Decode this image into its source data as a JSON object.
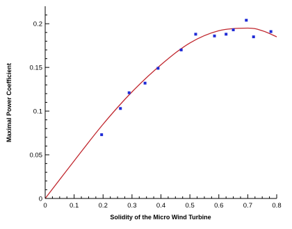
{
  "chart_data": {
    "type": "scatter",
    "title": "",
    "xlabel": "Solidity of the Micro Wind Turbine",
    "ylabel": "Maximal Power Coefficient",
    "xlim": [
      0,
      0.8
    ],
    "ylim": [
      0,
      0.22
    ],
    "x_ticks": [
      0,
      0.1,
      0.2,
      0.3,
      0.4,
      0.5,
      0.6,
      0.7,
      0.8
    ],
    "x_tick_labels": [
      "0",
      "0.1",
      "0.2",
      "0.3",
      "0.4",
      "0.5",
      "0.6",
      "0.7",
      "0.8"
    ],
    "y_ticks": [
      0,
      0.05,
      0.1,
      0.15,
      0.2
    ],
    "y_tick_labels": [
      "0",
      "0.05",
      "0.1",
      "0.15",
      "0.2"
    ],
    "grid": false,
    "series": [
      {
        "kind": "points",
        "color": "#1f2bd6",
        "points": [
          [
            0.195,
            0.073
          ],
          [
            0.26,
            0.103
          ],
          [
            0.29,
            0.121
          ],
          [
            0.345,
            0.132
          ],
          [
            0.39,
            0.149
          ],
          [
            0.47,
            0.17
          ],
          [
            0.52,
            0.188
          ],
          [
            0.585,
            0.186
          ],
          [
            0.625,
            0.188
          ],
          [
            0.65,
            0.193
          ],
          [
            0.695,
            0.204
          ],
          [
            0.72,
            0.185
          ],
          [
            0.78,
            0.191
          ]
        ]
      },
      {
        "kind": "fit-line",
        "color": "#c0262d",
        "points": [
          [
            0,
            0
          ],
          [
            0.1,
            0.043
          ],
          [
            0.2,
            0.085
          ],
          [
            0.3,
            0.122
          ],
          [
            0.4,
            0.153
          ],
          [
            0.5,
            0.178
          ],
          [
            0.6,
            0.192
          ],
          [
            0.7,
            0.195
          ],
          [
            0.75,
            0.192
          ],
          [
            0.8,
            0.185
          ]
        ]
      }
    ]
  }
}
